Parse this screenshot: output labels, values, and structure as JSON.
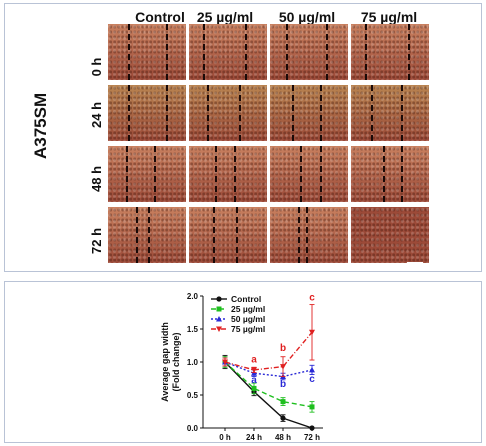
{
  "figure_a": {
    "column_labels": [
      "Control",
      "25 µg/ml",
      "50 µg/ml",
      "75 µg/ml"
    ],
    "row_labels": [
      "0 h",
      "24 h",
      "48 h",
      "72 h"
    ],
    "cell_line_label": "A375SM",
    "colors": {
      "tissue_light": "#c9805f",
      "tissue_dark": "#9c4a38",
      "tissue_24h": "#b98450",
      "gap_line": "#1a0a08",
      "scale_bar": "#ffffff"
    }
  },
  "chart_data": {
    "type": "line",
    "x": [
      "0 h",
      "24 h",
      "48 h",
      "72 h"
    ],
    "ylabel": "Average gap width\n(Fold change)",
    "ylabel_lines": [
      "Average gap width",
      "(Fold change)"
    ],
    "ylim": [
      0.0,
      2.0
    ],
    "yticks": [
      "0.0",
      "0.5",
      "1.0",
      "1.5",
      "2.0"
    ],
    "legend_position": "top-left",
    "series": [
      {
        "name": "Control",
        "color": "#111111",
        "style": "solid",
        "marker": "circle",
        "values": [
          1.0,
          0.55,
          0.15,
          0.0
        ],
        "errors": [
          0.1,
          0.06,
          0.05,
          0.0
        ]
      },
      {
        "name": "25 µg/ml",
        "color": "#1fbf1f",
        "style": "dashed",
        "marker": "square",
        "values": [
          1.0,
          0.6,
          0.4,
          0.32
        ],
        "errors": [
          0.08,
          0.08,
          0.06,
          0.08
        ]
      },
      {
        "name": "50 µg/ml",
        "color": "#2a2ad6",
        "style": "dotted",
        "marker": "triangle",
        "values": [
          1.0,
          0.83,
          0.78,
          0.88
        ],
        "errors": [
          0.06,
          0.05,
          0.05,
          0.07
        ]
      },
      {
        "name": "75 µg/ml",
        "color": "#e02020",
        "style": "dashdot",
        "marker": "triangle-down",
        "values": [
          1.0,
          0.88,
          0.93,
          1.45
        ],
        "errors": [
          0.06,
          0.04,
          0.15,
          0.42
        ]
      }
    ],
    "annotations": [
      {
        "text": "a",
        "color": "#e02020",
        "x": "24 h",
        "y": 0.99
      },
      {
        "text": "a",
        "color": "#2a2ad6",
        "x": "24 h",
        "y": 0.68
      },
      {
        "text": "b",
        "color": "#e02020",
        "x": "48 h",
        "y": 1.17
      },
      {
        "text": "b",
        "color": "#2a2ad6",
        "x": "48 h",
        "y": 0.62
      },
      {
        "text": "c",
        "color": "#e02020",
        "x": "72 h",
        "y": 1.93
      },
      {
        "text": "c",
        "color": "#2a2ad6",
        "x": "72 h",
        "y": 0.7
      }
    ]
  }
}
